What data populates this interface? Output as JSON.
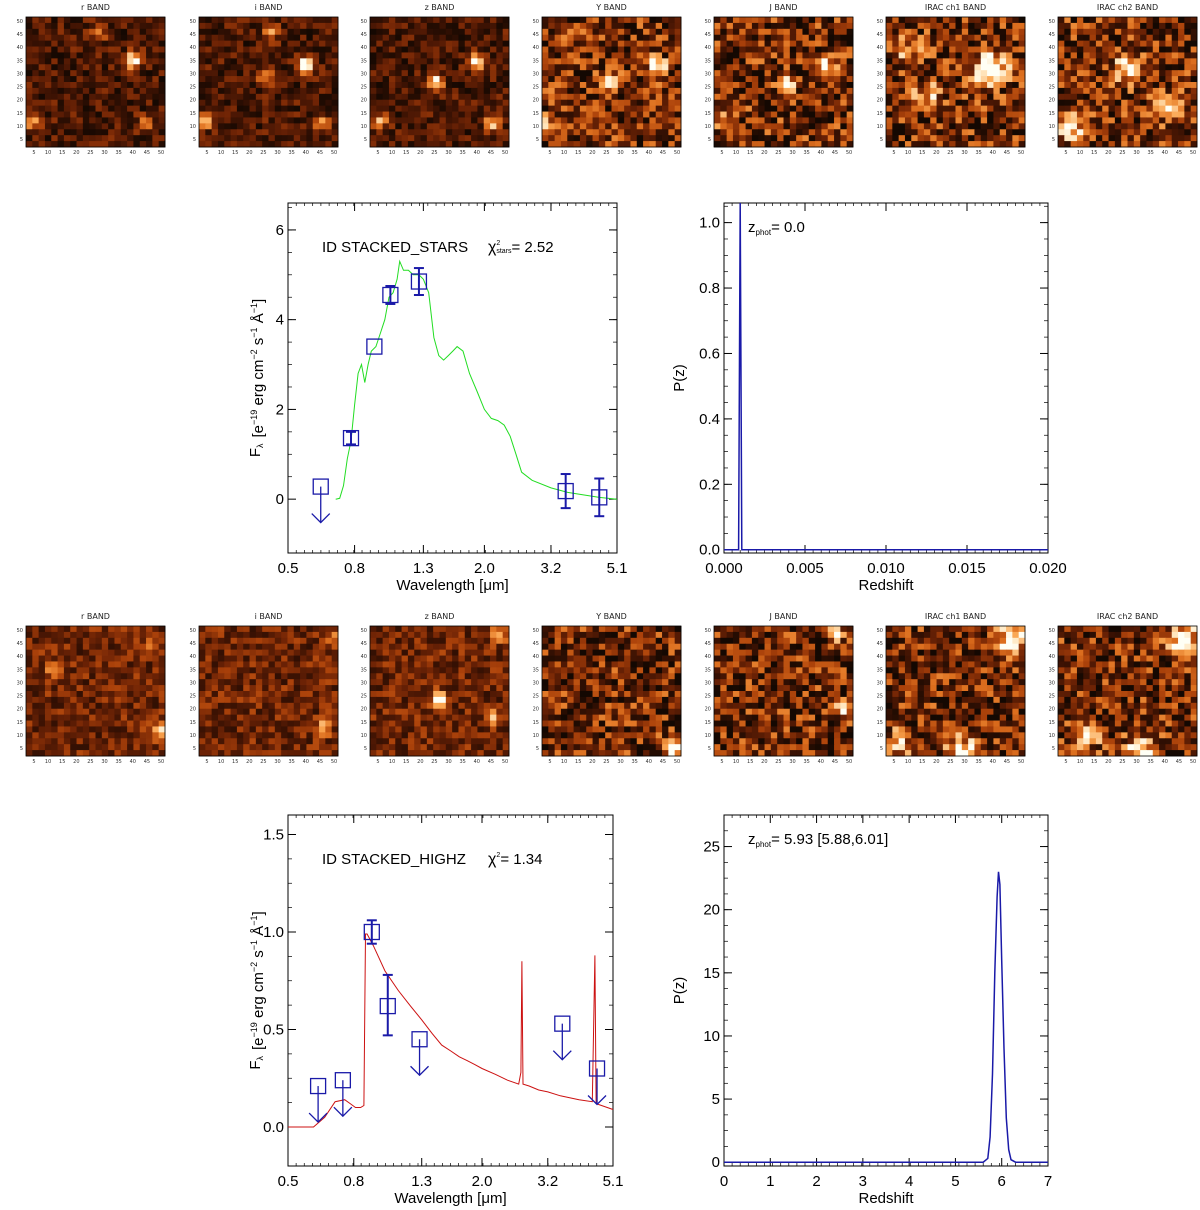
{
  "stamp_rows": [
    {
      "name": "stars",
      "bands": [
        "r BAND",
        "i BAND",
        "z BAND",
        "Y BAND",
        "J BAND",
        "IRAC ch1 BAND",
        "IRAC ch2 BAND"
      ],
      "x_ticks": [
        "5",
        "10",
        "15",
        "20",
        "25",
        "30",
        "35",
        "40",
        "45",
        "50"
      ],
      "y_ticks": [
        "5",
        "10",
        "15",
        "20",
        "25",
        "30",
        "35",
        "40",
        "45",
        "50"
      ],
      "sources": [
        [
          [
            0.77,
            0.33,
            0.95
          ],
          [
            0.05,
            0.8,
            0.6
          ],
          [
            0.52,
            0.12,
            0.45
          ],
          [
            0.86,
            0.82,
            0.45
          ]
        ],
        [
          [
            0.77,
            0.37,
            0.98
          ],
          [
            0.05,
            0.8,
            0.55
          ],
          [
            0.49,
            0.48,
            0.5
          ],
          [
            0.87,
            0.82,
            0.5
          ],
          [
            0.52,
            0.12,
            0.45
          ]
        ],
        [
          [
            0.77,
            0.35,
            0.9
          ],
          [
            0.47,
            0.5,
            0.75
          ],
          [
            0.88,
            0.82,
            0.6
          ],
          [
            0.07,
            0.8,
            0.5
          ]
        ],
        [
          [
            0.82,
            0.37,
            0.95
          ],
          [
            0.5,
            0.52,
            0.9
          ],
          [
            0.05,
            0.82,
            0.45
          ]
        ],
        [
          [
            0.8,
            0.37,
            0.95
          ],
          [
            0.52,
            0.53,
            0.9
          ],
          [
            0.07,
            0.82,
            0.45
          ]
        ],
        [
          [
            0.75,
            0.4,
            1.0
          ],
          [
            0.3,
            0.6,
            0.4
          ],
          [
            0.15,
            0.25,
            0.35
          ]
        ],
        [
          [
            0.5,
            0.4,
            0.55
          ],
          [
            0.8,
            0.7,
            0.45
          ],
          [
            0.1,
            0.85,
            0.5
          ]
        ]
      ]
    },
    {
      "name": "highz",
      "bands": [
        "r BAND",
        "i BAND",
        "z BAND",
        "Y BAND",
        "J BAND",
        "IRAC ch1 BAND",
        "IRAC ch2 BAND"
      ],
      "x_ticks": [
        "5",
        "10",
        "15",
        "20",
        "25",
        "30",
        "35",
        "40",
        "45",
        "50"
      ],
      "y_ticks": [
        "5",
        "10",
        "15",
        "20",
        "25",
        "30",
        "35",
        "40",
        "45",
        "50"
      ],
      "sources": [
        [
          [
            0.95,
            0.8,
            0.55
          ],
          [
            0.2,
            0.35,
            0.3
          ],
          [
            0.9,
            0.15,
            0.35
          ]
        ],
        [
          [
            0.9,
            0.78,
            0.45
          ],
          [
            0.95,
            0.1,
            0.35
          ]
        ],
        [
          [
            0.5,
            0.57,
            0.85
          ],
          [
            0.93,
            0.07,
            0.5
          ],
          [
            0.88,
            0.7,
            0.4
          ]
        ],
        [
          [
            0.95,
            0.9,
            0.6
          ],
          [
            0.95,
            0.95,
            0.55
          ]
        ],
        [
          [
            0.93,
            0.65,
            0.7
          ],
          [
            0.87,
            0.08,
            0.55
          ]
        ],
        [
          [
            0.9,
            0.1,
            0.8
          ],
          [
            0.55,
            0.95,
            0.6
          ],
          [
            0.1,
            0.9,
            0.4
          ]
        ],
        [
          [
            0.9,
            0.1,
            0.8
          ],
          [
            0.6,
            0.95,
            0.7
          ],
          [
            0.2,
            0.85,
            0.4
          ]
        ]
      ]
    }
  ],
  "chart_data": [
    {
      "type": "line",
      "id": "sed-stars",
      "annotation_id": "ID STACKED_STARS",
      "annotation_chi": "χ²stars=  2.52",
      "annotation_chi_main": "χ",
      "annotation_chi_sup": "2",
      "annotation_chi_sub": "stars",
      "annotation_chi_val": "=  2.52",
      "xlabel": "Wavelength [μm]",
      "ylabel": "F λ  [e⁻¹⁹ erg cm⁻² s⁻¹ Å⁻¹]",
      "ylabel_parts": [
        "F",
        "λ",
        "[e",
        "−19",
        " erg cm",
        "−2",
        " s",
        "−1",
        " Å",
        "−1",
        "]"
      ],
      "x_scale": "log",
      "xlim": [
        0.5,
        5.1
      ],
      "ylim": [
        -1.2,
        6.6
      ],
      "x_ticks": [
        0.5,
        0.8,
        1.3,
        2.0,
        3.2,
        5.1
      ],
      "x_tick_labels": [
        "0.5",
        "0.8",
        "1.3",
        "2.0",
        "3.2",
        "5.1"
      ],
      "y_ticks": [
        0,
        2,
        4,
        6
      ],
      "y_tick_labels": [
        "0",
        "2",
        "4",
        "6"
      ],
      "model_color": "#22dd22",
      "model": [
        [
          0.7,
          0.0
        ],
        [
          0.72,
          0.02
        ],
        [
          0.74,
          0.3
        ],
        [
          0.76,
          0.9
        ],
        [
          0.78,
          1.3
        ],
        [
          0.8,
          2.1
        ],
        [
          0.82,
          2.8
        ],
        [
          0.84,
          3.0
        ],
        [
          0.86,
          2.6
        ],
        [
          0.88,
          3.0
        ],
        [
          0.9,
          3.3
        ],
        [
          0.93,
          3.4
        ],
        [
          0.96,
          3.7
        ],
        [
          0.99,
          4.0
        ],
        [
          1.02,
          4.5
        ],
        [
          1.05,
          4.6
        ],
        [
          1.08,
          4.9
        ],
        [
          1.1,
          5.3
        ],
        [
          1.13,
          5.1
        ],
        [
          1.17,
          5.1
        ],
        [
          1.21,
          5.0
        ],
        [
          1.26,
          5.0
        ],
        [
          1.3,
          4.9
        ],
        [
          1.35,
          4.6
        ],
        [
          1.4,
          3.6
        ],
        [
          1.45,
          3.2
        ],
        [
          1.5,
          3.1
        ],
        [
          1.55,
          3.2
        ],
        [
          1.6,
          3.3
        ],
        [
          1.65,
          3.4
        ],
        [
          1.72,
          3.3
        ],
        [
          1.8,
          2.8
        ],
        [
          1.9,
          2.4
        ],
        [
          2.0,
          2.0
        ],
        [
          2.1,
          1.8
        ],
        [
          2.2,
          1.75
        ],
        [
          2.3,
          1.65
        ],
        [
          2.4,
          1.4
        ],
        [
          2.5,
          1.0
        ],
        [
          2.6,
          0.6
        ],
        [
          2.8,
          0.42
        ],
        [
          3.2,
          0.25
        ],
        [
          3.6,
          0.15
        ],
        [
          4.0,
          0.1
        ],
        [
          4.5,
          0.04
        ],
        [
          5.1,
          0.0
        ]
      ],
      "points": [
        {
          "x": 0.63,
          "y": 0.28,
          "lo": 0.28,
          "hi": 0.28,
          "upper_limit": true
        },
        {
          "x": 0.78,
          "y": 1.36,
          "lo": 1.22,
          "hi": 1.5,
          "upper_limit": false
        },
        {
          "x": 0.92,
          "y": 3.4,
          "lo": 3.4,
          "hi": 3.4,
          "upper_limit": false
        },
        {
          "x": 1.03,
          "y": 4.55,
          "lo": 4.35,
          "hi": 4.75,
          "upper_limit": false
        },
        {
          "x": 1.26,
          "y": 4.85,
          "lo": 4.55,
          "hi": 5.15,
          "upper_limit": false
        },
        {
          "x": 3.55,
          "y": 0.18,
          "lo": -0.2,
          "hi": 0.56,
          "upper_limit": false
        },
        {
          "x": 4.5,
          "y": 0.04,
          "lo": -0.38,
          "hi": 0.46,
          "upper_limit": false
        }
      ],
      "point_color": "#1a1aa8"
    },
    {
      "type": "line",
      "id": "pz-stars",
      "annotation": "zphot= 0.0",
      "annotation_main": "z",
      "annotation_sub": "phot",
      "annotation_val": "= 0.0",
      "xlabel": "Redshift",
      "ylabel": "P(z)",
      "xlim": [
        0.0,
        0.02
      ],
      "ylim": [
        -0.01,
        1.06
      ],
      "x_ticks": [
        0,
        0.005,
        0.01,
        0.015,
        0.02
      ],
      "x_tick_labels": [
        "0.000",
        "0.005",
        "0.010",
        "0.015",
        "0.020"
      ],
      "y_ticks": [
        0,
        0.2,
        0.4,
        0.6,
        0.8,
        1.0
      ],
      "y_tick_labels": [
        "0.0",
        "0.2",
        "0.4",
        "0.6",
        "0.8",
        "1.0"
      ],
      "line_color": "#1a1aa8",
      "series": [
        [
          0.0,
          0.0
        ],
        [
          0.0009,
          0.0
        ],
        [
          0.001,
          1.06
        ],
        [
          0.0011,
          0.0
        ],
        [
          0.02,
          0.0
        ]
      ]
    },
    {
      "type": "line",
      "id": "sed-highz",
      "annotation_id": "ID STACKED_HIGHZ",
      "annotation_chi": "χ²=  1.34",
      "annotation_chi_main": "χ",
      "annotation_chi_sup": "2",
      "annotation_chi_val": "=  1.34",
      "xlabel": "Wavelength [μm]",
      "ylabel": "F λ  [e⁻¹⁹ erg cm⁻² s⁻¹ Å⁻¹]",
      "ylabel_parts": [
        "F",
        "λ",
        "[e",
        "−19",
        " erg cm",
        "−2",
        " s",
        "−1",
        " Å",
        "−1",
        "]"
      ],
      "x_scale": "log",
      "xlim": [
        0.5,
        5.1
      ],
      "ylim": [
        -0.2,
        1.6
      ],
      "x_ticks": [
        0.5,
        0.8,
        1.3,
        2.0,
        3.2,
        5.1
      ],
      "x_tick_labels": [
        "0.5",
        "0.8",
        "1.3",
        "2.0",
        "3.2",
        "5.1"
      ],
      "y_ticks": [
        0,
        0.5,
        1.0,
        1.5
      ],
      "y_tick_labels": [
        "0.0",
        "0.5",
        "1.0",
        "1.5"
      ],
      "model_color": "#cc1111",
      "model": [
        [
          0.5,
          0.0
        ],
        [
          0.6,
          0.0
        ],
        [
          0.65,
          0.05
        ],
        [
          0.7,
          0.13
        ],
        [
          0.75,
          0.14
        ],
        [
          0.78,
          0.12
        ],
        [
          0.81,
          0.1
        ],
        [
          0.84,
          0.1
        ],
        [
          0.86,
          0.11
        ],
        [
          0.87,
          0.99
        ],
        [
          0.88,
          0.99
        ],
        [
          0.92,
          0.93
        ],
        [
          1.0,
          0.8
        ],
        [
          1.1,
          0.7
        ],
        [
          1.2,
          0.62
        ],
        [
          1.3,
          0.55
        ],
        [
          1.4,
          0.48
        ],
        [
          1.5,
          0.42
        ],
        [
          1.6,
          0.39
        ],
        [
          1.7,
          0.36
        ],
        [
          1.8,
          0.34
        ],
        [
          1.9,
          0.32
        ],
        [
          2.0,
          0.3
        ],
        [
          2.2,
          0.27
        ],
        [
          2.4,
          0.24
        ],
        [
          2.6,
          0.22
        ],
        [
          2.64,
          0.28
        ],
        [
          2.66,
          0.85
        ],
        [
          2.68,
          0.22
        ],
        [
          2.8,
          0.21
        ],
        [
          3.0,
          0.19
        ],
        [
          3.2,
          0.18
        ],
        [
          3.5,
          0.16
        ],
        [
          4.0,
          0.14
        ],
        [
          4.4,
          0.13
        ],
        [
          4.48,
          0.88
        ],
        [
          4.52,
          0.12
        ],
        [
          5.1,
          0.09
        ]
      ],
      "points": [
        {
          "x": 0.62,
          "y": 0.21,
          "lo": 0.21,
          "hi": 0.21,
          "upper_limit": true
        },
        {
          "x": 0.74,
          "y": 0.24,
          "lo": 0.24,
          "hi": 0.24,
          "upper_limit": true
        },
        {
          "x": 0.91,
          "y": 1.0,
          "lo": 0.94,
          "hi": 1.06,
          "upper_limit": false
        },
        {
          "x": 1.02,
          "y": 0.62,
          "lo": 0.47,
          "hi": 0.78,
          "upper_limit": false
        },
        {
          "x": 1.28,
          "y": 0.45,
          "lo": 0.45,
          "hi": 0.45,
          "upper_limit": true
        },
        {
          "x": 3.55,
          "y": 0.53,
          "lo": 0.53,
          "hi": 0.53,
          "upper_limit": true
        },
        {
          "x": 4.55,
          "y": 0.3,
          "lo": 0.3,
          "hi": 0.3,
          "upper_limit": true
        }
      ],
      "point_color": "#1a1aa8"
    },
    {
      "type": "line",
      "id": "pz-highz",
      "annotation": "zphot= 5.93 [5.88,6.01]",
      "annotation_main": "z",
      "annotation_sub": "phot",
      "annotation_val": "= 5.93 [5.88,6.01]",
      "xlabel": "Redshift",
      "ylabel": "P(z)",
      "xlim": [
        0,
        7
      ],
      "ylim": [
        -0.3,
        27.5
      ],
      "x_ticks": [
        0,
        1,
        2,
        3,
        4,
        5,
        6,
        7
      ],
      "x_tick_labels": [
        "0",
        "1",
        "2",
        "3",
        "4",
        "5",
        "6",
        "7"
      ],
      "y_ticks": [
        0,
        5,
        10,
        15,
        20,
        25
      ],
      "y_tick_labels": [
        "0",
        "5",
        "10",
        "15",
        "20",
        "25"
      ],
      "line_color": "#1a1aa8",
      "series": [
        [
          0,
          0
        ],
        [
          5.6,
          0
        ],
        [
          5.7,
          0.3
        ],
        [
          5.75,
          2
        ],
        [
          5.8,
          7
        ],
        [
          5.85,
          15
        ],
        [
          5.9,
          21
        ],
        [
          5.93,
          23
        ],
        [
          5.96,
          22
        ],
        [
          6.0,
          16
        ],
        [
          6.05,
          9
        ],
        [
          6.1,
          3.5
        ],
        [
          6.15,
          1
        ],
        [
          6.2,
          0.2
        ],
        [
          6.3,
          0
        ],
        [
          7,
          0
        ]
      ]
    }
  ]
}
